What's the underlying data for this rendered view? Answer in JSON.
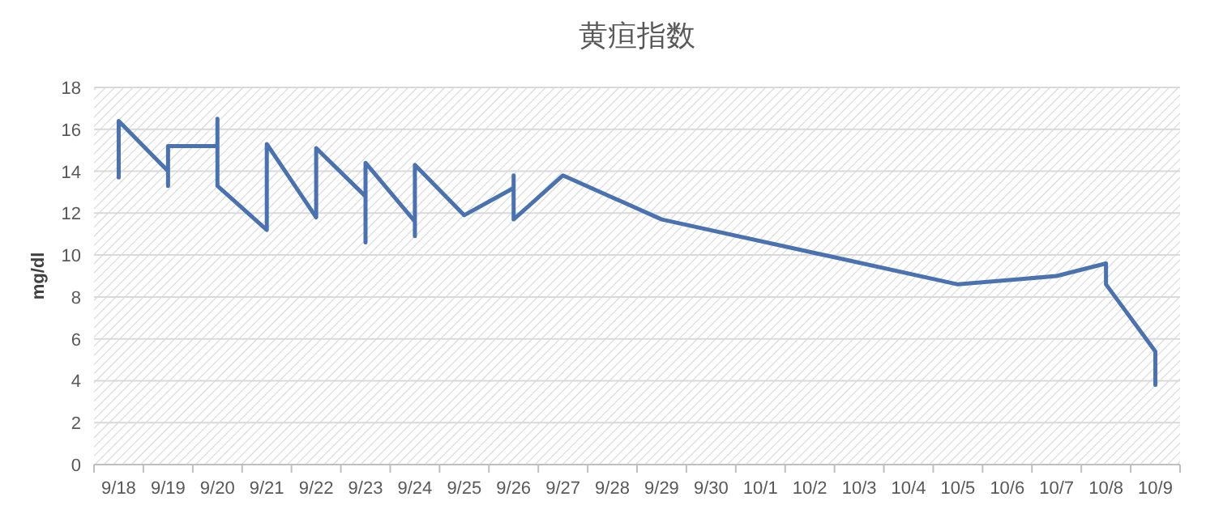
{
  "chart_data": {
    "type": "line",
    "title": "黄疸指数",
    "ylabel": "mg/dl",
    "categories": [
      "9/18",
      "9/19",
      "9/20",
      "9/21",
      "9/22",
      "9/23",
      "9/24",
      "9/25",
      "9/26",
      "9/27",
      "9/28",
      "9/29",
      "9/30",
      "10/1",
      "10/2",
      "10/3",
      "10/4",
      "10/5",
      "10/6",
      "10/7",
      "10/8",
      "10/9"
    ],
    "series": [
      {
        "color": "#4a72b0",
        "x": [
          "9/18",
          "9/18",
          "9/19",
          "9/19",
          "9/19",
          "9/20",
          "9/20",
          "9/20",
          "9/21",
          "9/21",
          "9/22",
          "9/22",
          "9/23",
          "9/23",
          "9/23",
          "9/24",
          "9/24",
          "9/24",
          "9/25",
          "9/26",
          "9/26",
          "9/26",
          "9/27",
          "9/29",
          "10/5",
          "10/7",
          "10/8",
          "10/8",
          "10/9",
          "10/9"
        ],
        "values": [
          13.7,
          16.4,
          14.0,
          13.3,
          15.2,
          15.2,
          16.5,
          13.3,
          11.2,
          15.3,
          11.8,
          15.1,
          12.8,
          10.6,
          14.4,
          11.6,
          10.9,
          14.3,
          11.9,
          13.2,
          13.8,
          11.7,
          13.8,
          11.7,
          8.6,
          9.0,
          9.6,
          8.6,
          5.4,
          3.8
        ]
      }
    ],
    "ylim": [
      0,
      18
    ],
    "yticks": [
      0,
      2,
      4,
      6,
      8,
      10,
      12,
      14,
      16,
      18
    ],
    "grid": "y",
    "marker": "none",
    "line_style": "solid"
  }
}
